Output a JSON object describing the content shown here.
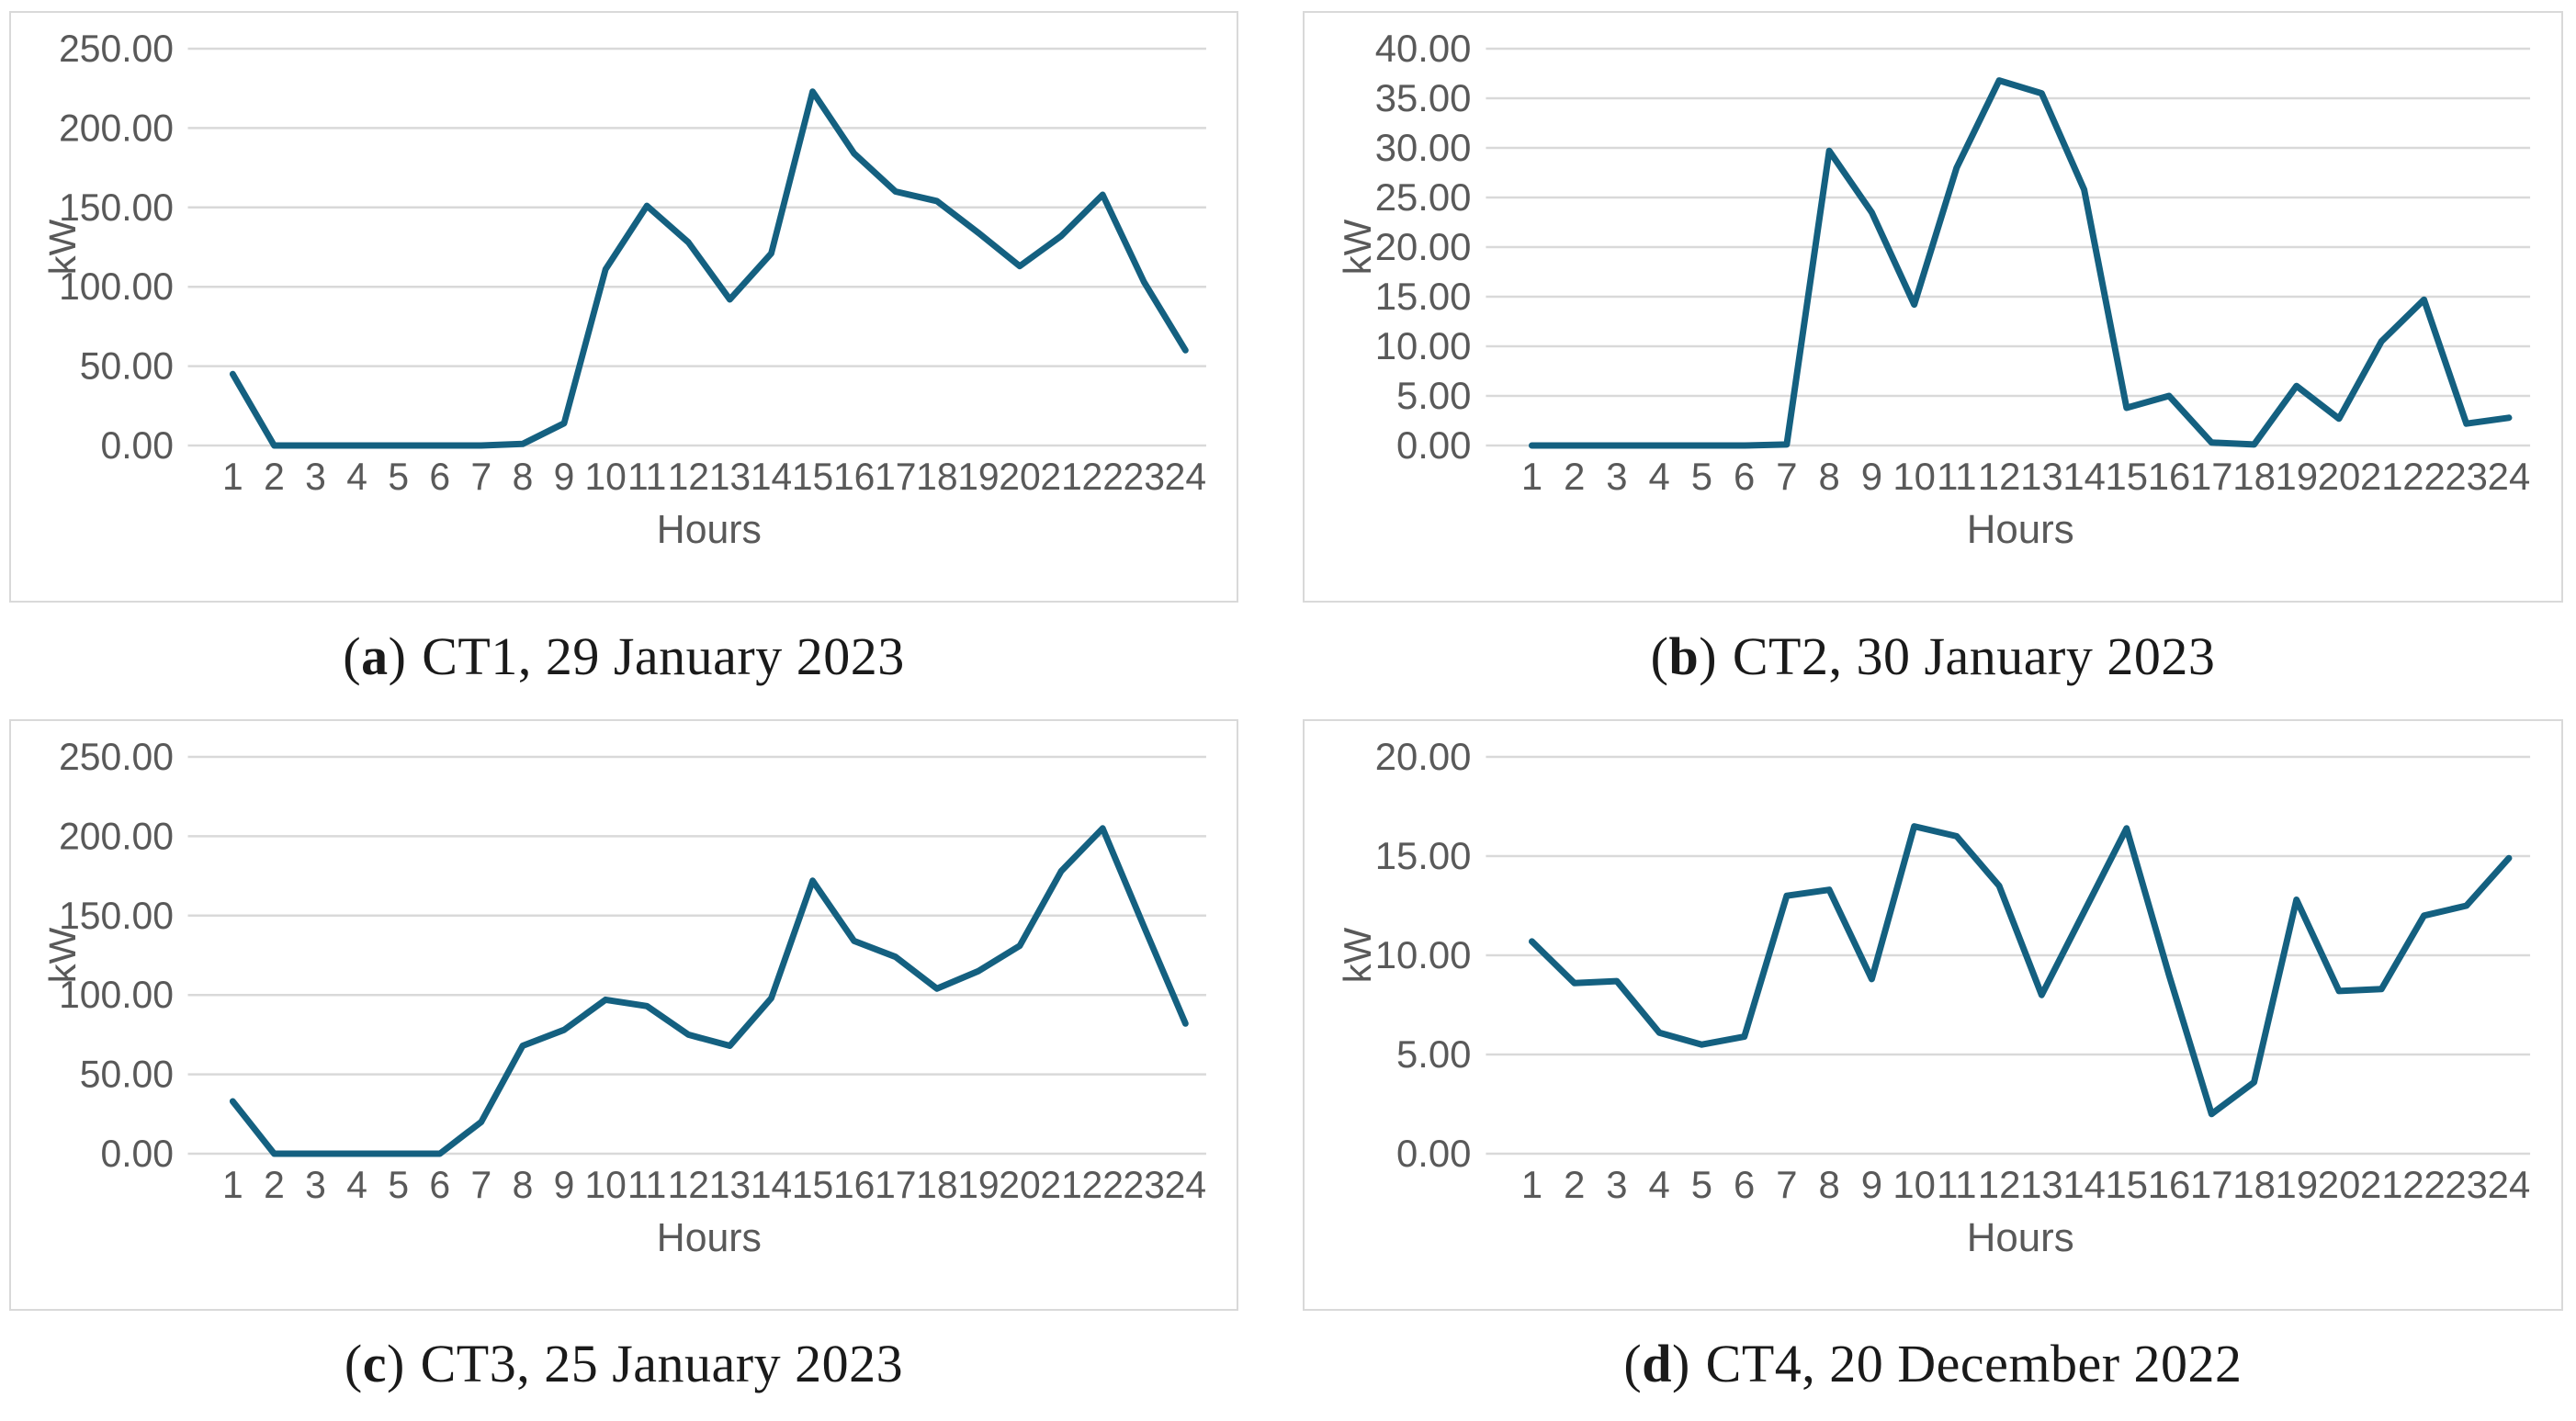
{
  "palette": {
    "line": "#146080",
    "grid": "#d9d9d9",
    "tick_text": "#595959",
    "panel_border": "#d9d9d9",
    "caption_text": "#1a1a1a"
  },
  "figure": {
    "panels": [
      {
        "caption": {
          "open": "(",
          "letter": "a",
          "close": ")",
          "text": "CT1, 29 January 2023"
        }
      },
      {
        "caption": {
          "open": "(",
          "letter": "b",
          "close": ")",
          "text": "CT2, 30 January 2023"
        }
      },
      {
        "caption": {
          "open": "(",
          "letter": "c",
          "close": ")",
          "text": "CT3, 25 January 2023"
        }
      },
      {
        "caption": {
          "open": "(",
          "letter": "d",
          "close": ")",
          "text": "CT4, 20 December 2022"
        }
      }
    ]
  },
  "chart_data": [
    {
      "type": "line",
      "panel": "a",
      "caption": "(a) CT1, 29 January 2023",
      "xlabel": "Hours",
      "ylabel": "kW",
      "x": [
        1,
        2,
        3,
        4,
        5,
        6,
        7,
        8,
        9,
        10,
        11,
        12,
        13,
        14,
        15,
        16,
        17,
        18,
        19,
        20,
        21,
        22,
        23,
        24
      ],
      "values": [
        45,
        0,
        0,
        0,
        0,
        0,
        0,
        1,
        14,
        111,
        151,
        128,
        92,
        121,
        223,
        184,
        160,
        154,
        134,
        113,
        132,
        158,
        103,
        60
      ],
      "ylim": [
        0,
        250
      ],
      "ystep": 50,
      "yticks": [
        "250.00",
        "200.00",
        "150.00",
        "100.00",
        "50.00",
        "0.00"
      ],
      "grid": true,
      "legend": false
    },
    {
      "type": "line",
      "panel": "b",
      "caption": "(b) CT2, 30 January 2023",
      "xlabel": "Hours",
      "ylabel": "kW",
      "x": [
        1,
        2,
        3,
        4,
        5,
        6,
        7,
        8,
        9,
        10,
        11,
        12,
        13,
        14,
        15,
        16,
        17,
        18,
        19,
        20,
        21,
        22,
        23,
        24
      ],
      "values": [
        0,
        0,
        0,
        0,
        0,
        0,
        0.1,
        29.7,
        23.5,
        14.2,
        28,
        36.8,
        35.5,
        25.8,
        3.8,
        5,
        0.3,
        0.1,
        6,
        2.7,
        10.5,
        14.7,
        2.2,
        2.8
      ],
      "ylim": [
        0,
        40
      ],
      "ystep": 5,
      "yticks": [
        "40.00",
        "35.00",
        "30.00",
        "25.00",
        "20.00",
        "15.00",
        "10.00",
        "5.00",
        "0.00"
      ],
      "grid": true,
      "legend": false
    },
    {
      "type": "line",
      "panel": "c",
      "caption": "(c) CT3, 25 January 2023",
      "xlabel": "Hours",
      "ylabel": "kW",
      "x": [
        1,
        2,
        3,
        4,
        5,
        6,
        7,
        8,
        9,
        10,
        11,
        12,
        13,
        14,
        15,
        16,
        17,
        18,
        19,
        20,
        21,
        22,
        23,
        24
      ],
      "values": [
        33,
        0,
        0,
        0,
        0,
        0,
        20,
        68,
        78,
        97,
        93,
        75,
        68,
        98,
        172,
        134,
        124,
        104,
        115,
        131,
        178,
        205,
        143,
        82
      ],
      "ylim": [
        0,
        250
      ],
      "ystep": 50,
      "yticks": [
        "250.00",
        "200.00",
        "150.00",
        "100.00",
        "50.00",
        "0.00"
      ],
      "grid": true,
      "legend": false
    },
    {
      "type": "line",
      "panel": "d",
      "caption": "(d) CT4, 20 December 2022",
      "xlabel": "Hours",
      "ylabel": "kW",
      "x": [
        1,
        2,
        3,
        4,
        5,
        6,
        7,
        8,
        9,
        10,
        11,
        12,
        13,
        14,
        15,
        16,
        17,
        18,
        19,
        20,
        21,
        22,
        23,
        24
      ],
      "values": [
        10.7,
        8.6,
        8.7,
        6.1,
        5.5,
        5.9,
        13,
        13.3,
        8.8,
        16.5,
        16,
        13.5,
        8,
        12.2,
        16.4,
        9,
        2,
        3.6,
        12.8,
        8.2,
        8.3,
        12,
        12.5,
        14.9
      ],
      "ylim": [
        0,
        20
      ],
      "ystep": 5,
      "yticks": [
        "20.00",
        "15.00",
        "10.00",
        "5.00",
        "0.00"
      ],
      "grid": true,
      "legend": false
    }
  ]
}
